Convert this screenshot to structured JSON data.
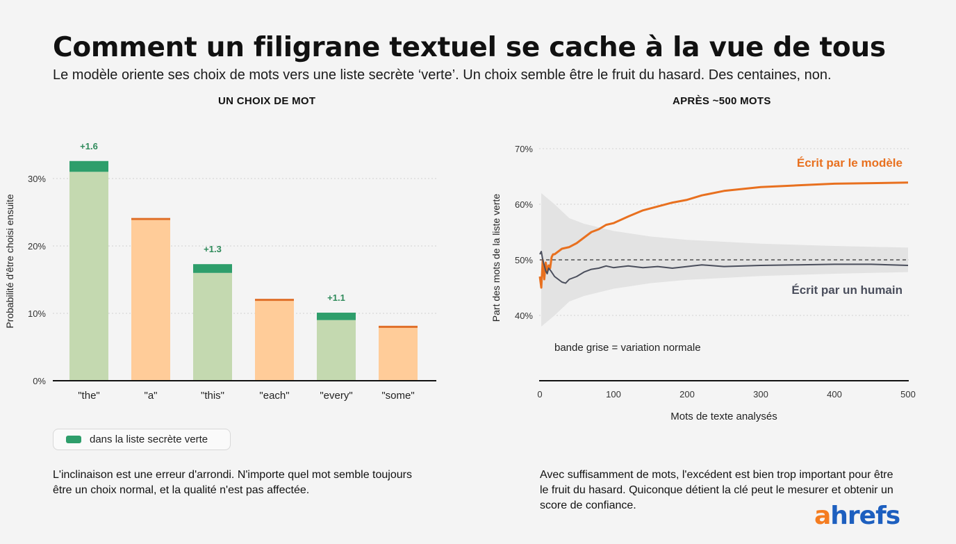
{
  "header": {
    "title": "Comment un filigrane textuel se cache à la vue de tous",
    "subtitle": "Le modèle oriente ses choix de mots vers une liste secrète ‘verte’. Un choix semble être le fruit du hasard. Des centaines, non."
  },
  "left_panel": {
    "title": "UN CHOIX DE MOT",
    "legend_label": "dans la liste secrète verte",
    "note": "L'inclinaison est une erreur d'arrondi. N'importe quel mot semble toujours être un choix normal, et la qualité n'est pas affectée."
  },
  "right_panel": {
    "title": "APRÈS ~500 MOTS",
    "band_label": "bande grise = variation normale",
    "note": "Avec suffisamment de mots, l'excédent est bien trop important pour être le fruit du hasard. Quiconque détient la clé peut le mesurer et obtenir un score de confiance."
  },
  "logo": {
    "first": "a",
    "rest": "hrefs"
  },
  "colors": {
    "green_bar": "#c4d9b0",
    "green_boost": "#2e9e6b",
    "orange_bar": "#ffcc99",
    "orange_top": "#e0702a",
    "model_line": "#e8701f",
    "human_line": "#4a4e5c",
    "band": "#e3e3e3",
    "boost_text": "#2e8a5a"
  },
  "chart_data": [
    {
      "type": "bar",
      "title": "UN CHOIX DE MOT",
      "categories": [
        "\"the\"",
        "\"a\"",
        "\"this\"",
        "\"each\"",
        "\"every\"",
        "\"some\""
      ],
      "series": [
        {
          "values": [
            31,
            24,
            16,
            12,
            9,
            8
          ]
        },
        {
          "name": "dans la liste secrète verte",
          "values": [
            1.6,
            0,
            1.3,
            0,
            1.1,
            0
          ]
        }
      ],
      "in_green_list": [
        true,
        false,
        true,
        false,
        true,
        false
      ],
      "boost_labels": [
        "+1.6",
        "",
        "+1.3",
        "",
        "+1.1",
        ""
      ],
      "ylabel": "Probabilité d'être choisi ensuite",
      "ylim": [
        0,
        35
      ],
      "yticks": [
        0,
        10,
        20,
        30
      ],
      "ytick_labels": [
        "0%",
        "10%",
        "20%",
        "30%"
      ],
      "grid": true
    },
    {
      "type": "line",
      "title": "APRÈS ~500 MOTS",
      "xlabel": "Mots de texte analysés",
      "ylabel": "Part des mots de la liste verte",
      "xlim": [
        0,
        500
      ],
      "ylim": [
        37,
        71
      ],
      "xticks": [
        0,
        100,
        200,
        300,
        400,
        500
      ],
      "xtick_labels": [
        "0",
        "100",
        "200",
        "300",
        "400",
        "500"
      ],
      "yticks": [
        40,
        50,
        60,
        70
      ],
      "ytick_labels": [
        "40%",
        "50%",
        "60%",
        "70%"
      ],
      "reference_line": 50,
      "band": {
        "x": [
          2,
          20,
          40,
          60,
          100,
          150,
          200,
          300,
          400,
          500
        ],
        "upper": [
          62,
          60,
          57.5,
          56.5,
          55.2,
          54.2,
          53.6,
          52.9,
          52.5,
          52.2
        ],
        "lower": [
          38,
          40,
          42.5,
          43.5,
          44.8,
          45.8,
          46.4,
          47.1,
          47.5,
          47.8
        ]
      },
      "series": [
        {
          "name": "Écrit par le modèle",
          "x": [
            0,
            2,
            4,
            6,
            8,
            10,
            12,
            14,
            16,
            18,
            20,
            25,
            30,
            40,
            50,
            60,
            70,
            80,
            90,
            100,
            120,
            140,
            160,
            180,
            200,
            220,
            250,
            300,
            350,
            400,
            450,
            500
          ],
          "y": [
            47,
            45,
            50,
            46.5,
            49.5,
            48,
            49,
            48.5,
            50.5,
            51,
            51,
            51.5,
            52,
            52.3,
            53,
            54,
            55,
            55.5,
            56.3,
            56.6,
            57.8,
            58.9,
            59.6,
            60.3,
            60.8,
            61.6,
            62.4,
            63.1,
            63.4,
            63.7,
            63.8,
            63.9
          ]
        },
        {
          "name": "Écrit par un humain",
          "x": [
            0,
            2,
            4,
            6,
            8,
            10,
            12,
            15,
            20,
            25,
            30,
            35,
            40,
            50,
            60,
            70,
            80,
            90,
            100,
            120,
            140,
            160,
            180,
            200,
            220,
            250,
            300,
            350,
            400,
            450,
            500
          ],
          "y": [
            51,
            51.5,
            50,
            49,
            48,
            47.5,
            48.5,
            48,
            47,
            46.5,
            46,
            45.8,
            46.5,
            47,
            47.8,
            48.3,
            48.5,
            48.9,
            48.6,
            48.9,
            48.6,
            48.8,
            48.5,
            48.8,
            49.1,
            48.8,
            49,
            49.1,
            49.2,
            49.2,
            49
          ]
        }
      ],
      "grid": true
    }
  ]
}
